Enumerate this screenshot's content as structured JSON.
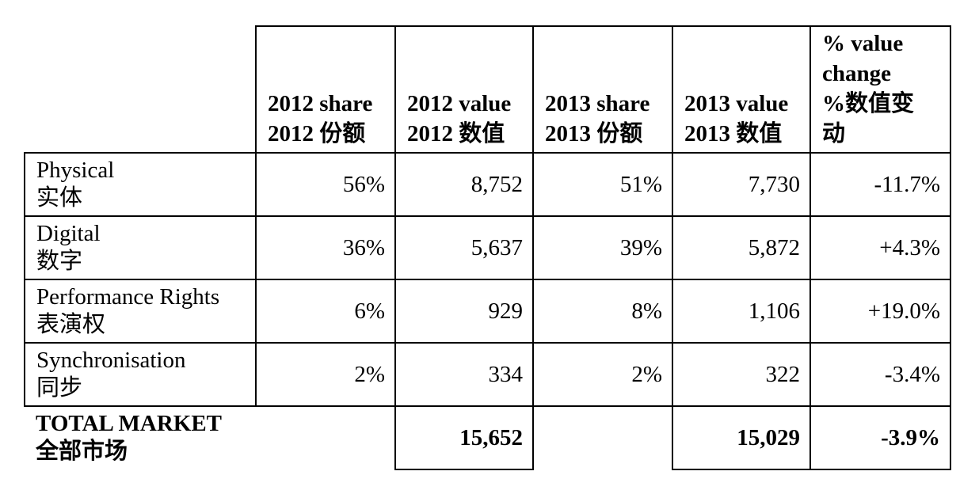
{
  "header": {
    "columns": [
      {
        "en": "2012 share",
        "zh": "2012 份额"
      },
      {
        "en": "2012 value",
        "zh": "2012 数值"
      },
      {
        "en": "2013 share",
        "zh": "2013 份额"
      },
      {
        "en": "2013 value",
        "zh": "2013 数值"
      },
      {
        "l1": "% value",
        "l2": "change",
        "l3": "%数值变",
        "l4": "动"
      }
    ]
  },
  "rows": [
    {
      "en": "Physical",
      "zh": "实体",
      "share_2012": "56%",
      "value_2012": "8,752",
      "share_2013": "51%",
      "value_2013": "7,730",
      "change": "-11.7%"
    },
    {
      "en": "Digital",
      "zh": "数字",
      "share_2012": "36%",
      "value_2012": "5,637",
      "share_2013": "39%",
      "value_2013": "5,872",
      "change": "+4.3%"
    },
    {
      "en": "Performance Rights",
      "zh": "表演权",
      "share_2012": "6%",
      "value_2012": "929",
      "share_2013": "8%",
      "value_2013": "1,106",
      "change": "+19.0%"
    },
    {
      "en": "Synchronisation",
      "zh": "同步",
      "share_2012": "2%",
      "value_2012": "334",
      "share_2013": "2%",
      "value_2013": "322",
      "change": "-3.4%"
    }
  ],
  "total": {
    "en": "TOTAL MARKET",
    "zh": "全部市场",
    "value_2012": "15,652",
    "value_2013": "15,029",
    "change": "-3.9%"
  }
}
